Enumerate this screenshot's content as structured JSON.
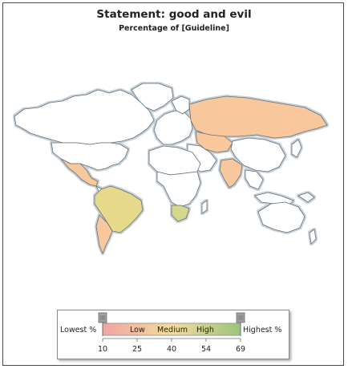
{
  "chart": {
    "title": "Statement: good and evil",
    "subtitle": "Percentage of [Guideline]"
  },
  "legend": {
    "lowest_label": "Lowest %",
    "highest_label": "Highest %",
    "band_labels": [
      "Low",
      "Medium",
      "High"
    ],
    "ticks": [
      "10",
      "25",
      "40",
      "54",
      "69"
    ],
    "scale_min": 10,
    "scale_max": 69,
    "colors": {
      "low": "#f2a3a3",
      "mid": "#f3dc9a",
      "high": "#9bc47a"
    }
  },
  "map_colors": {
    "no_data": "#ffffff",
    "border": "#5c6f7a",
    "halo": "#c8d0d6"
  },
  "regions": [
    {
      "name": "Russia",
      "color": "#f8c89c"
    },
    {
      "name": "Kazakhstan",
      "color": "#f8c89c"
    },
    {
      "name": "India",
      "color": "#f8c89c"
    },
    {
      "name": "Mexico",
      "color": "#f8c89c"
    },
    {
      "name": "Argentina",
      "color": "#f8c89c"
    },
    {
      "name": "Brazil",
      "color": "#e7d98a"
    },
    {
      "name": "Nigeria",
      "color": "#b3cf6f"
    },
    {
      "name": "South Africa",
      "color": "#d5d78a"
    },
    {
      "name": "Australia",
      "color": "#ffffff"
    }
  ]
}
